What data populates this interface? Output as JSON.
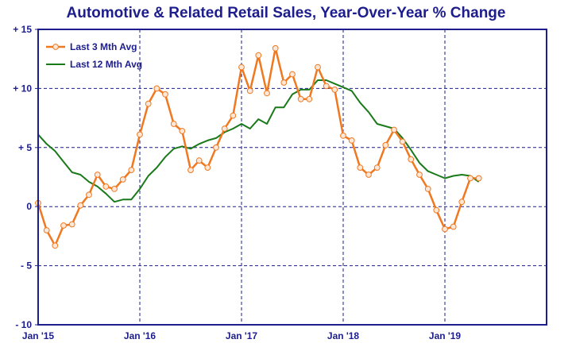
{
  "chart_data": {
    "type": "line",
    "title": "Automotive & Related Retail Sales, Year-Over-Year % Change",
    "xlabel": "",
    "ylabel": "",
    "xlim": [
      2015.0,
      2020.0
    ],
    "ylim": [
      -10,
      15
    ],
    "y_ticks": [
      15,
      10,
      5,
      0,
      -5,
      -10
    ],
    "y_tick_labels": [
      "+ 15",
      "+ 10",
      "+ 5",
      "0",
      "- 5",
      "- 10"
    ],
    "x_ticks": [
      2015.0,
      2016.0,
      2017.0,
      2018.0,
      2019.0
    ],
    "x_tick_labels": [
      "Jan '15",
      "Jan '16",
      "Jan '17",
      "Jan '18",
      "Jan '19"
    ],
    "grid": "dashed, at every tick",
    "legend_position": "top-left",
    "colors": {
      "title": "#1d1d8c",
      "axes": "#1d1d8c",
      "grid": "#1d1d8c",
      "last3": "#f07820",
      "marker_fill": "#fde8d8",
      "last12": "#1a7a1a"
    },
    "series": [
      {
        "name": "Last 3 Mth Avg",
        "marker": "circle",
        "x": [
          2015.0,
          2015.0833,
          2015.1667,
          2015.25,
          2015.3333,
          2015.4167,
          2015.5,
          2015.5833,
          2015.6667,
          2015.75,
          2015.8333,
          2015.9167,
          2016.0,
          2016.0833,
          2016.1667,
          2016.25,
          2016.3333,
          2016.4167,
          2016.5,
          2016.5833,
          2016.6667,
          2016.75,
          2016.8333,
          2016.9167,
          2017.0,
          2017.0833,
          2017.1667,
          2017.25,
          2017.3333,
          2017.4167,
          2017.5,
          2017.5833,
          2017.6667,
          2017.75,
          2017.8333,
          2017.9167,
          2018.0,
          2018.0833,
          2018.1667,
          2018.25,
          2018.3333,
          2018.4167,
          2018.5,
          2018.5833,
          2018.6667,
          2018.75,
          2018.8333,
          2018.9167,
          2019.0,
          2019.0833,
          2019.1667,
          2019.25,
          2019.3333
        ],
        "values": [
          0.3,
          -2.0,
          -3.3,
          -1.6,
          -1.5,
          0.1,
          1.0,
          2.7,
          1.7,
          1.5,
          2.3,
          3.1,
          6.1,
          8.7,
          10.0,
          9.5,
          7.0,
          6.4,
          3.1,
          3.9,
          3.3,
          5.0,
          6.6,
          7.7,
          11.8,
          9.8,
          12.8,
          9.6,
          13.4,
          10.5,
          11.2,
          9.1,
          9.1,
          11.8,
          10.2,
          9.9,
          6.0,
          5.6,
          3.3,
          2.7,
          3.3,
          5.2,
          6.5,
          5.5,
          4.0,
          2.7,
          1.5,
          -0.3,
          -1.9,
          -1.7,
          0.4,
          2.4,
          2.4
        ]
      },
      {
        "name": "Last 12 Mth Avg",
        "marker": "none",
        "x": [
          2015.0,
          2015.0833,
          2015.1667,
          2015.25,
          2015.3333,
          2015.4167,
          2015.5,
          2015.5833,
          2015.6667,
          2015.75,
          2015.8333,
          2015.9167,
          2016.0,
          2016.0833,
          2016.1667,
          2016.25,
          2016.3333,
          2016.4167,
          2016.5,
          2016.5833,
          2016.6667,
          2016.75,
          2016.8333,
          2016.9167,
          2017.0,
          2017.0833,
          2017.1667,
          2017.25,
          2017.3333,
          2017.4167,
          2017.5,
          2017.5833,
          2017.6667,
          2017.75,
          2017.8333,
          2017.9167,
          2018.0,
          2018.0833,
          2018.1667,
          2018.25,
          2018.3333,
          2018.4167,
          2018.5,
          2018.5833,
          2018.6667,
          2018.75,
          2018.8333,
          2018.9167,
          2019.0,
          2019.0833,
          2019.1667,
          2019.25,
          2019.3333
        ],
        "values": [
          6.1,
          5.3,
          4.7,
          3.8,
          2.9,
          2.7,
          2.1,
          1.7,
          1.1,
          0.4,
          0.6,
          0.6,
          1.5,
          2.6,
          3.3,
          4.2,
          4.9,
          5.1,
          4.9,
          5.3,
          5.6,
          5.8,
          6.3,
          6.6,
          7.0,
          6.6,
          7.4,
          7.0,
          8.4,
          8.4,
          9.5,
          9.9,
          9.9,
          10.7,
          10.7,
          10.4,
          10.1,
          9.8,
          8.8,
          8.0,
          7.0,
          6.8,
          6.6,
          5.8,
          4.8,
          3.7,
          3.0,
          2.7,
          2.4,
          2.6,
          2.7,
          2.6,
          2.1
        ]
      }
    ]
  }
}
